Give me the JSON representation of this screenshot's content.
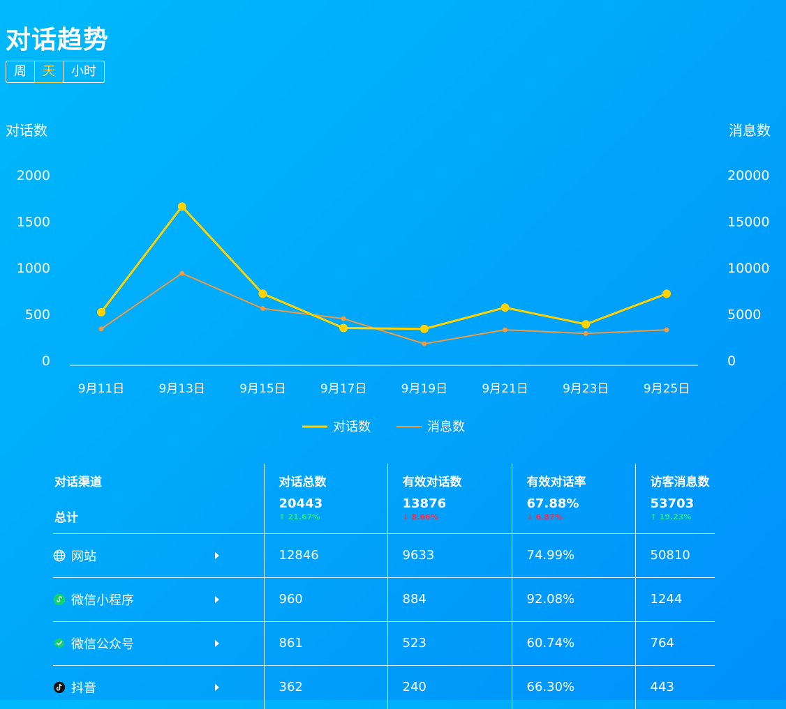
{
  "page": {
    "title": "对话趋势",
    "period_tabs": [
      "周",
      "天",
      "小时"
    ],
    "active_tab": "天"
  },
  "chart_data": {
    "type": "line",
    "y_axis_left_label": "对话数",
    "y_axis_right_label": "消息数",
    "x": [
      "9月11日",
      "9月13日",
      "9月15日",
      "9月17日",
      "9月19日",
      "9月21日",
      "9月23日",
      "9月25日"
    ],
    "y_left_ticks": [
      "0",
      "500",
      "1000",
      "1500",
      "2000"
    ],
    "y_right_ticks": [
      "0",
      "5000",
      "10000",
      "15000",
      "20000"
    ],
    "ylim_left": [
      0,
      2000
    ],
    "ylim_right": [
      0,
      20000
    ],
    "series": [
      {
        "name": "对话数",
        "axis": "left",
        "color": "#ffd200",
        "values": [
          520,
          1660,
          720,
          350,
          340,
          570,
          390,
          720
        ]
      },
      {
        "name": "消息数",
        "axis": "right",
        "color": "#f19a3e",
        "values": [
          3400,
          9400,
          5600,
          4500,
          1800,
          3300,
          2900,
          3300
        ]
      }
    ],
    "legend": "bottom-center"
  },
  "table": {
    "header": {
      "channel_label": "对话渠道",
      "total_label": "总计",
      "expand_icon": "caret-right-icon",
      "columns": [
        {
          "label": "对话总数",
          "value": "20443",
          "change": "↑ 21.67%",
          "trend": "up"
        },
        {
          "label": "有效对话数",
          "value": "13876",
          "change": "↓ 8.66%",
          "trend": "down"
        },
        {
          "label": "有效对话率",
          "value": "67.88%",
          "change": "↓ 6.87%",
          "trend": "down"
        },
        {
          "label": "访客消息数",
          "value": "53703",
          "change": "↑ 19.23%",
          "trend": "up"
        }
      ]
    },
    "rows": [
      {
        "icon": "globe-icon",
        "channel": "网站",
        "values": [
          "12846",
          "9633",
          "74.99%",
          "50810"
        ]
      },
      {
        "icon": "wechat-miniprogram-icon",
        "channel": "微信小程序",
        "values": [
          "960",
          "884",
          "92.08%",
          "1244"
        ]
      },
      {
        "icon": "wechat-official-account-icon",
        "channel": "微信公众号",
        "values": [
          "861",
          "523",
          "60.74%",
          "764"
        ]
      },
      {
        "icon": "tiktok-icon",
        "channel": "抖音",
        "values": [
          "362",
          "240",
          "66.30%",
          "443"
        ]
      }
    ]
  },
  "colors": {
    "accent_active": "#ffd54a",
    "up": "#25e38a",
    "down": "#ff2a4a"
  }
}
